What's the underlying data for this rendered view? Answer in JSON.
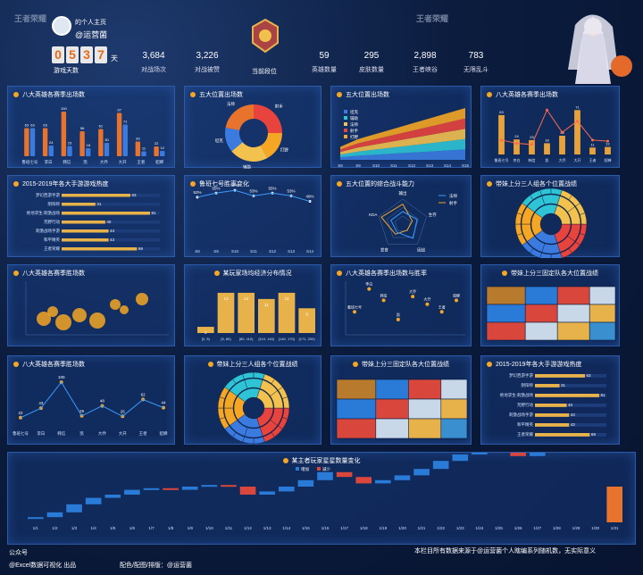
{
  "header": {
    "profile_label": "的个人主页",
    "user": "@运营菌",
    "days_digits": [
      "0",
      "5",
      "3",
      "7"
    ],
    "days_unit": "天",
    "days_label": "游戏天数",
    "stats": [
      {
        "value": "3,684",
        "label": "对战场次"
      },
      {
        "value": "3,226",
        "label": "对战被赞"
      },
      {
        "value": "",
        "label": "当前段位"
      },
      {
        "value": "59",
        "label": "英雄数量"
      },
      {
        "value": "295",
        "label": "皮肤数量"
      },
      {
        "value": "2,898",
        "label": "王者峡谷"
      },
      {
        "value": "783",
        "label": "无限乱斗"
      }
    ],
    "logos": [
      "王者荣耀",
      "王者荣耀"
    ]
  },
  "panels": {
    "p1": {
      "title": "八大英雄各赛季出场数"
    },
    "p2": {
      "title": "五大位置出场数"
    },
    "p3": {
      "title": "五大位置出场数"
    },
    "p4": {
      "title": "八大英雄各赛季出场数"
    },
    "p5": {
      "title": "2015-2019年各大手游游戏热度"
    },
    "p6": {
      "title": "鲁班七号胜率变化"
    },
    "p7": {
      "title": "五大位置的综合战斗能力"
    },
    "p8": {
      "title": "带妹上分三人组各个位置战绩"
    },
    "p9": {
      "title": "八大英雄各赛季胜场数"
    },
    "p10": {
      "title": "某玩家场均经济分布情况"
    },
    "p11": {
      "title": "八大英雄各赛季出场数与胜率"
    },
    "p12": {
      "title": "带妹上分三固定队各大位置战绩"
    },
    "p13": {
      "title": "八大英雄各赛季胜场数"
    },
    "p14": {
      "title": "带妹上分三人组各个位置战绩"
    },
    "p15": {
      "title": "带妹上分三固定队各大位置战绩"
    },
    "p16": {
      "title": "2015-2019年各大手游游戏热度"
    },
    "p17": {
      "title": "某主者玩家星星数量变化"
    }
  },
  "chart_data": [
    {
      "type": "bar",
      "categories": [
        "鲁班七号",
        "李白",
        "韩信",
        "凯",
        "大乔",
        "大开",
        "王者",
        "貂蝉"
      ],
      "series": [
        {
          "name": "",
          "values": [
            63,
            63,
            100,
            56,
            61,
            97,
            33,
            22
          ]
        },
        {
          "name": "",
          "values": [
            63,
            24,
            23,
            18,
            30,
            71,
            11,
            12
          ]
        }
      ]
    },
    {
      "type": "pie",
      "categories": [
        "射手",
        "打野",
        "辅助",
        "坦克",
        "法师"
      ],
      "values": [
        25,
        17,
        22,
        14,
        22
      ]
    },
    {
      "type": "area",
      "categories": [
        "S8",
        "S9",
        "S10",
        "S11",
        "S12",
        "S13",
        "S14",
        "S15"
      ],
      "series": [
        {
          "name": "坦克",
          "values": [
            5,
            8,
            10,
            12,
            14,
            16,
            18,
            20
          ]
        },
        {
          "name": "辅助",
          "values": [
            5,
            8,
            10,
            12,
            14,
            16,
            18,
            20
          ]
        },
        {
          "name": "法师",
          "values": [
            5,
            8,
            10,
            12,
            14,
            16,
            18,
            20
          ]
        },
        {
          "name": "射手",
          "values": [
            5,
            8,
            10,
            12,
            14,
            16,
            18,
            20
          ]
        },
        {
          "name": "打野",
          "values": [
            5,
            8,
            10,
            12,
            14,
            16,
            18,
            20
          ]
        }
      ]
    },
    {
      "type": "bar",
      "categories": [
        "鲁班七号",
        "李白",
        "韩信",
        "凯",
        "大乔",
        "大开",
        "王者",
        "貂蝉"
      ],
      "series": [
        {
          "name": "",
          "values": [
            63,
            24,
            23,
            18,
            30,
            71,
            11,
            12
          ]
        },
        {
          "name": "",
          "values": [
            130,
            100,
            90,
            400,
            200,
            300,
            130,
            120
          ]
        }
      ]
    },
    {
      "type": "bar",
      "categories": [
        "梦幻西游手游",
        "阴阳师",
        "绝地求生:刺激战场",
        "荒野行动",
        "刺激战场手游",
        "和平精英",
        "王者荣耀"
      ],
      "values": [
        63,
        31,
        81,
        40,
        43,
        43,
        69
      ]
    },
    {
      "type": "line",
      "categories": [
        "S8",
        "S9",
        "S10",
        "S11",
        "S12",
        "S13",
        "S14"
      ],
      "values": [
        52,
        55,
        57,
        53,
        55,
        53,
        49
      ]
    },
    {
      "type": "scatter",
      "categories": [
        "鲁班七号",
        "李白",
        "韩信",
        "凯",
        "大乔",
        "大开",
        "王者",
        "貂蝉"
      ],
      "values": [
        30,
        60,
        45,
        20,
        50,
        40,
        30,
        45
      ]
    },
    {
      "type": "bar",
      "categories": [
        "[0, 5)",
        "[5, 80)",
        "[80, 110)",
        "[110, 140)",
        "[140, 170)",
        "[171, 200)"
      ],
      "values": [
        2,
        13,
        13,
        11,
        13,
        8
      ]
    },
    {
      "type": "line",
      "categories": [
        "1/1",
        "1/2",
        "1/3",
        "1/4",
        "1/5",
        "1/6",
        "1/7",
        "1/8",
        "1/9",
        "1/10",
        "1/11",
        "1/12",
        "1/13",
        "1/14",
        "1/15",
        "1/16",
        "1/17",
        "1/18",
        "1/19",
        "1/20",
        "1/21",
        "1/22",
        "1/23",
        "1/24",
        "1/25",
        "1/26",
        "1/27",
        "1/28",
        "1/29",
        "1/30",
        "1/31"
      ],
      "series": [
        {
          "name": "增加",
          "values": [
            1,
            1,
            0,
            1,
            1,
            0,
            0,
            1,
            1,
            1,
            0,
            1,
            1,
            0,
            1,
            0,
            1,
            0,
            1,
            1,
            0,
            1,
            1,
            1,
            0,
            1,
            1,
            1,
            0,
            1,
            0
          ]
        },
        {
          "name": "减少",
          "values": [
            0,
            0,
            1,
            0,
            0,
            1,
            1,
            0,
            0,
            0,
            1,
            0,
            0,
            1,
            0,
            1,
            0,
            1,
            0,
            0,
            1,
            0,
            0,
            0,
            1,
            0,
            0,
            0,
            1,
            0,
            1
          ]
        }
      ]
    }
  ],
  "footer": {
    "left1": "公众号",
    "left2": "@Excel数据可视化 出品",
    "center": "配色/配图/排版：@运营菌",
    "right": "本栏目所有数据来源于@运营菌个人瞎编系列随机数，无实际意义"
  }
}
